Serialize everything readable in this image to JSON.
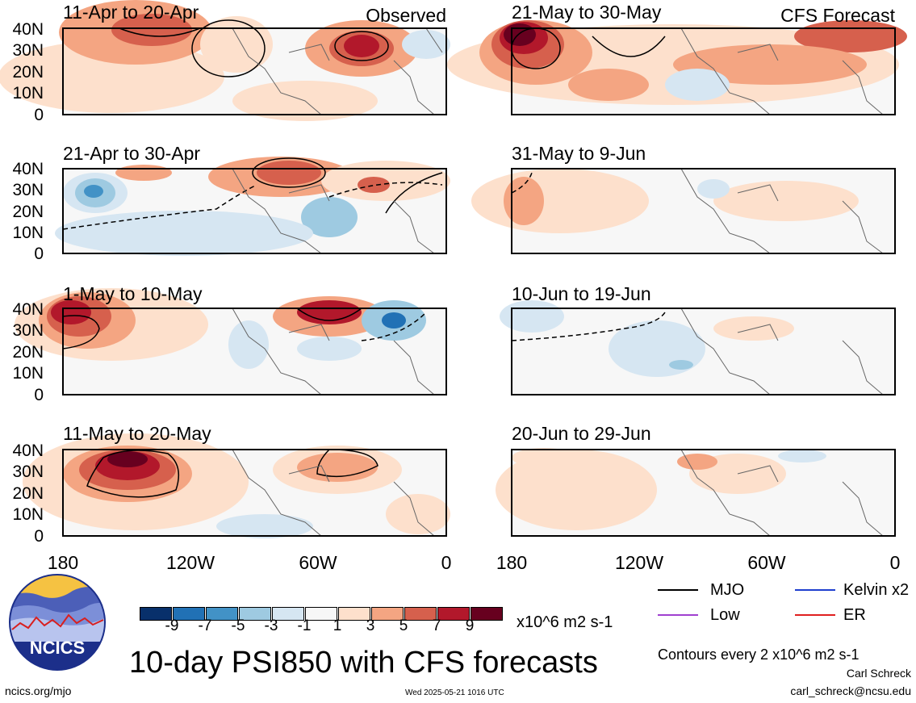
{
  "panels": {
    "observed": [
      {
        "title": "11-Apr to 20-Apr",
        "label": "Observed"
      },
      {
        "title": "21-Apr to 30-Apr",
        "label": ""
      },
      {
        "title": "1-May to 10-May",
        "label": ""
      },
      {
        "title": "11-May to 20-May",
        "label": ""
      }
    ],
    "forecast": [
      {
        "title": "21-May to 30-May",
        "label": "CFS Forecast"
      },
      {
        "title": "31-May to 9-Jun",
        "label": ""
      },
      {
        "title": "10-Jun to 19-Jun",
        "label": ""
      },
      {
        "title": "20-Jun to 29-Jun",
        "label": ""
      }
    ]
  },
  "lat_labels": [
    "40N",
    "30N",
    "20N",
    "10N",
    "0"
  ],
  "lon_labels": [
    "180",
    "120W",
    "60W",
    "0"
  ],
  "colorbar": {
    "colors": [
      "#08306b",
      "#2171b5",
      "#4292c6",
      "#9ecae1",
      "#d6e6f2",
      "#f7f7f7",
      "#fde0cc",
      "#f4a582",
      "#d6604d",
      "#b2182b",
      "#67001f"
    ],
    "ticks": [
      "-9",
      "-7",
      "-5",
      "-3",
      "-1",
      "1",
      "3",
      "5",
      "7",
      "9"
    ],
    "units": "x10^6 m2 s-1"
  },
  "legend": {
    "mjo": {
      "label": "MJO",
      "color": "#000000"
    },
    "kelvin": {
      "label": "Kelvin x2",
      "color": "#1f3fcf"
    },
    "low": {
      "label": "Low",
      "color": "#a040d0"
    },
    "er": {
      "label": "ER",
      "color": "#e02020"
    }
  },
  "main_title": "10-day PSI850 with CFS forecasts",
  "contour_note": "Contours every 2 x10^6 m2 s-1",
  "author": "Carl Schreck",
  "email": "carl_schreck@ncsu.edu",
  "website": "ncics.org/mjo",
  "timestamp": "Wed 2025-05-21 1016 UTC",
  "logo_text": "NCICS"
}
